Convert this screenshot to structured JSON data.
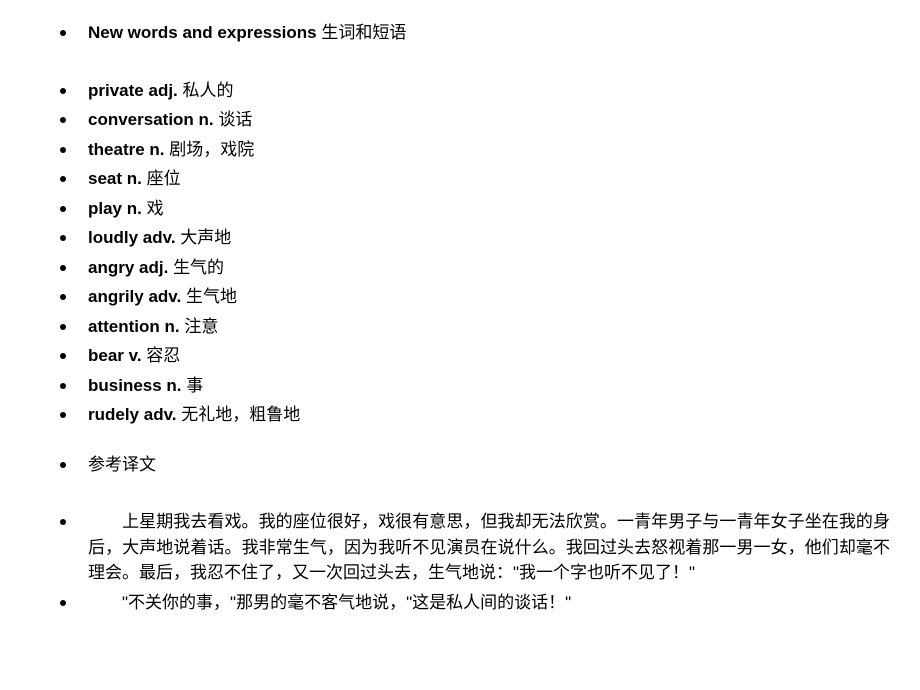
{
  "background_color": "#ffffff",
  "text_color": "#000000",
  "bullet_color": "#000000",
  "base_fontsize": 17,
  "heading": {
    "bold_text": "New words and expressions",
    "suffix": " 生词和短语"
  },
  "vocab": [
    {
      "word": "private",
      "pos": "adj.",
      "def": "私人的"
    },
    {
      "word": "conversation",
      "pos": "n.",
      "def": "谈话"
    },
    {
      "word": "theatre",
      "pos": "n.",
      "def": "剧场，戏院"
    },
    {
      "word": "seat",
      "pos": "n.",
      "def": "座位"
    },
    {
      "word": "play",
      "pos": "n.",
      "def": "戏"
    },
    {
      "word": "loudly",
      "pos": "adv.",
      "def": "大声地"
    },
    {
      "word": "angry",
      "pos": "adj.",
      "def": "生气的"
    },
    {
      "word": "angrily",
      "pos": "adv.",
      "def": "生气地"
    },
    {
      "word": "attention",
      "pos": "n.",
      "def": "注意"
    },
    {
      "word": "bear",
      "pos": "v.",
      "def": "容忍"
    },
    {
      "word": "business",
      "pos": "n.",
      "def": "事"
    },
    {
      "word": "rudely",
      "pos": "adv.",
      "def": "无礼地，粗鲁地"
    }
  ],
  "translation_label": "参考译文",
  "paragraphs": [
    "上星期我去看戏。我的座位很好，戏很有意思，但我却无法欣赏。一青年男子与一青年女子坐在我的身后，大声地说着话。我非常生气，因为我听不见演员在说什么。我回过头去怒视着那一男一女，他们却毫不理会。最后，我忍不住了，又一次回过头去，生气地说：\"我一个字也听不见了！\"",
    "\"不关你的事，\"那男的毫不客气地说，\"这是私人间的谈话！\""
  ]
}
